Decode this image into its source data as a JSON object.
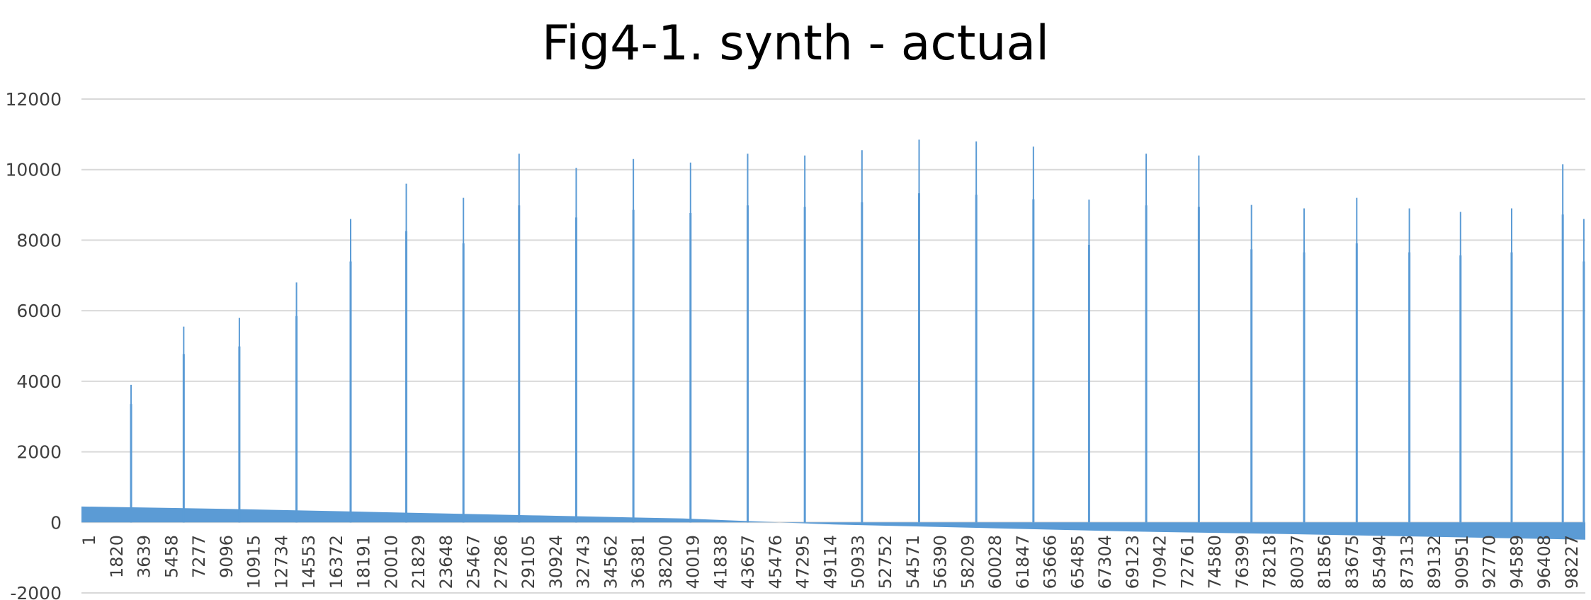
{
  "chart_data": {
    "type": "bar",
    "title": "Fig4-1. synth - actual",
    "xlabel": "",
    "ylabel": "",
    "ylim": [
      -2000,
      12000
    ],
    "y_ticks": [
      12000,
      10000,
      8000,
      6000,
      4000,
      2000,
      0,
      -2000
    ],
    "x_range": [
      1,
      100000
    ],
    "x_tick_labels": [
      "1",
      "1820",
      "3639",
      "5458",
      "7277",
      "9096",
      "10915",
      "12734",
      "14553",
      "16372",
      "18191",
      "20010",
      "21829",
      "23648",
      "25467",
      "27286",
      "29105",
      "30924",
      "32743",
      "34562",
      "36381",
      "38200",
      "40019",
      "41838",
      "43657",
      "45476",
      "47295",
      "49114",
      "50933",
      "52752",
      "54571",
      "56390",
      "58209",
      "60028",
      "61847",
      "63666",
      "65485",
      "67304",
      "69123",
      "70942",
      "72761",
      "74580",
      "76399",
      "78218",
      "80037",
      "81856",
      "83675",
      "85494",
      "87313",
      "89132",
      "90951",
      "92770",
      "94589",
      "96408",
      "98227"
    ],
    "series_color": "#5b9bd5",
    "grid": true,
    "legend": "none",
    "baseline_trend": {
      "x": [
        1,
        10000,
        20000,
        30000,
        40000,
        50000,
        55000,
        60000,
        70000,
        80000,
        90000,
        100000
      ],
      "y": [
        450,
        380,
        290,
        200,
        110,
        -60,
        -110,
        -160,
        -260,
        -330,
        -410,
        -490
      ]
    },
    "peaks": [
      {
        "x": 3300,
        "y": 3900
      },
      {
        "x": 6800,
        "y": 5550
      },
      {
        "x": 10500,
        "y": 5800
      },
      {
        "x": 14300,
        "y": 6800
      },
      {
        "x": 17900,
        "y": 8600
      },
      {
        "x": 21600,
        "y": 9600
      },
      {
        "x": 25400,
        "y": 9200
      },
      {
        "x": 29100,
        "y": 10450
      },
      {
        "x": 32900,
        "y": 10050
      },
      {
        "x": 36700,
        "y": 10300
      },
      {
        "x": 40500,
        "y": 10200
      },
      {
        "x": 44300,
        "y": 10450
      },
      {
        "x": 48100,
        "y": 10400
      },
      {
        "x": 51900,
        "y": 10550
      },
      {
        "x": 55700,
        "y": 10850
      },
      {
        "x": 59500,
        "y": 10800
      },
      {
        "x": 63300,
        "y": 10650
      },
      {
        "x": 67000,
        "y": 9150
      },
      {
        "x": 70800,
        "y": 10450
      },
      {
        "x": 74300,
        "y": 10400
      },
      {
        "x": 77800,
        "y": 9000
      },
      {
        "x": 81300,
        "y": 8900
      },
      {
        "x": 84800,
        "y": 9200
      },
      {
        "x": 88300,
        "y": 8900
      },
      {
        "x": 91700,
        "y": 8800
      },
      {
        "x": 95100,
        "y": 8900
      },
      {
        "x": 98500,
        "y": 10150
      },
      {
        "x": 99900,
        "y": 8600
      }
    ]
  }
}
